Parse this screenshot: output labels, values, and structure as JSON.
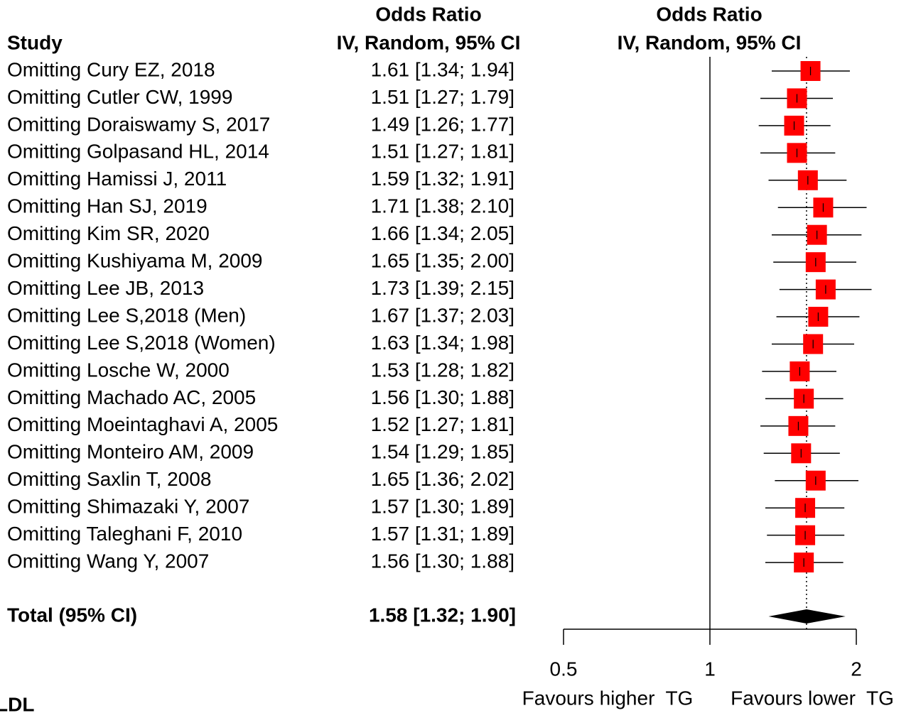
{
  "chart_data": {
    "type": "forest",
    "study_header": "Study",
    "headers": [
      "Odds Ratio",
      "IV, Random, 95% CI"
    ],
    "categories": [
      "Omitting Cury EZ, 2018",
      "Omitting Cutler CW, 1999",
      "Omitting Doraiswamy S, 2017",
      "Omitting Golpasand HL, 2014",
      "Omitting Hamissi J, 2011",
      "Omitting Han SJ, 2019",
      "Omitting Kim SR, 2020",
      "Omitting Kushiyama M, 2009",
      "Omitting Lee JB, 2013",
      "Omitting Lee S,2018 (Men)",
      "Omitting Lee S,2018 (Women)",
      "Omitting Losche W, 2000",
      "Omitting Machado AC, 2005",
      "Omitting Moeintaghavi A, 2005",
      "Omitting Monteiro AM, 2009",
      "Omitting Saxlin T, 2008",
      "Omitting Shimazaki Y, 2007",
      "Omitting Taleghani F, 2010",
      "Omitting Wang Y, 2007"
    ],
    "values": [
      1.61,
      1.51,
      1.49,
      1.51,
      1.59,
      1.71,
      1.66,
      1.65,
      1.73,
      1.67,
      1.63,
      1.53,
      1.56,
      1.52,
      1.54,
      1.65,
      1.57,
      1.57,
      1.56
    ],
    "lower": [
      1.34,
      1.27,
      1.26,
      1.27,
      1.32,
      1.38,
      1.34,
      1.35,
      1.39,
      1.37,
      1.34,
      1.28,
      1.3,
      1.27,
      1.29,
      1.36,
      1.3,
      1.31,
      1.3
    ],
    "upper": [
      1.94,
      1.79,
      1.77,
      1.81,
      1.91,
      2.1,
      2.05,
      2.0,
      2.15,
      2.03,
      1.98,
      1.82,
      1.88,
      1.81,
      1.85,
      2.02,
      1.89,
      1.89,
      1.88
    ],
    "value_labels": [
      "1.61 [1.34; 1.94]",
      "1.51 [1.27; 1.79]",
      "1.49 [1.26; 1.77]",
      "1.51 [1.27; 1.81]",
      "1.59 [1.32; 1.91]",
      "1.71 [1.38; 2.10]",
      "1.66 [1.34; 2.05]",
      "1.65 [1.35; 2.00]",
      "1.73 [1.39; 2.15]",
      "1.67 [1.37; 2.03]",
      "1.63 [1.34; 1.98]",
      "1.53 [1.28; 1.82]",
      "1.56 [1.30; 1.88]",
      "1.52 [1.27; 1.81]",
      "1.54 [1.29; 1.85]",
      "1.65 [1.36; 2.02]",
      "1.57 [1.30; 1.89]",
      "1.57 [1.31; 1.89]",
      "1.56 [1.30; 1.88]"
    ],
    "color": "#ff0000",
    "total": {
      "label": "Total (95% CI)",
      "value": 1.58,
      "lower": 1.32,
      "upper": 1.9,
      "value_label": "1.58 [1.32; 1.90]"
    },
    "log_x": true,
    "xlim": [
      0.5,
      2
    ],
    "xticks": [
      0.5,
      1,
      2
    ],
    "null_line": 1,
    "xlabels": [
      "Favours higher  TG",
      "Favours lower  TG"
    ],
    "footnote": "LDL"
  }
}
